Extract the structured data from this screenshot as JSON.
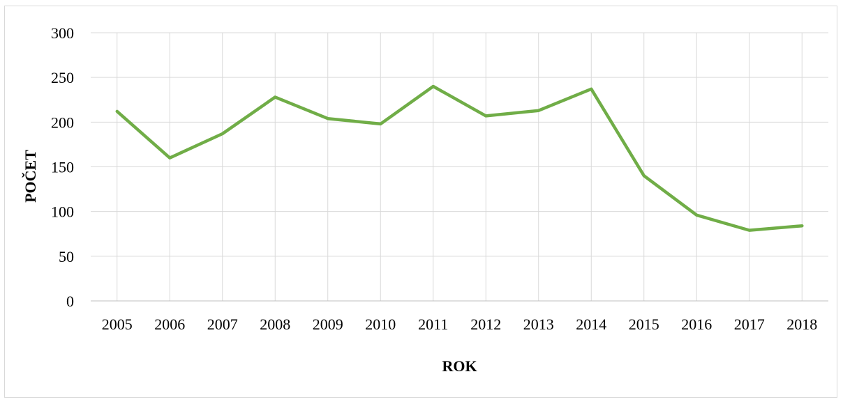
{
  "chart_data": {
    "type": "line",
    "title": "",
    "xlabel": "ROK",
    "ylabel": "POČET",
    "categories": [
      "2005",
      "2006",
      "2007",
      "2008",
      "2009",
      "2010",
      "2011",
      "2012",
      "2013",
      "2014",
      "2015",
      "2016",
      "2017",
      "2018"
    ],
    "series": [
      {
        "values": [
          212,
          160,
          187,
          228,
          204,
          198,
          240,
          207,
          213,
          237,
          140,
          96,
          79,
          84
        ]
      }
    ],
    "ylim": [
      0,
      300
    ],
    "yticks": [
      "0",
      "50",
      "100",
      "150",
      "200",
      "250",
      "300"
    ],
    "grid": "both",
    "legend": "none",
    "colors": {
      "line": "#70ad47",
      "grid": "#d9d9d9",
      "axis": "#bfbfbf"
    }
  }
}
